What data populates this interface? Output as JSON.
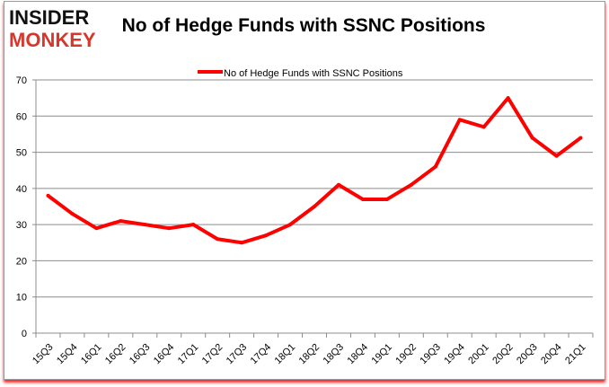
{
  "logo": {
    "line1": "INSIDER",
    "line2": "MONKEY"
  },
  "chart_data": {
    "type": "line",
    "title": "No of Hedge Funds with SSNC Positions",
    "xlabel": "",
    "ylabel": "",
    "categories": [
      "15Q3",
      "15Q4",
      "16Q1",
      "16Q2",
      "16Q3",
      "16Q4",
      "17Q1",
      "17Q2",
      "17Q3",
      "17Q4",
      "18Q1",
      "18Q2",
      "18Q3",
      "18Q4",
      "19Q1",
      "19Q2",
      "19Q3",
      "19Q4",
      "20Q1",
      "20Q2",
      "20Q3",
      "20Q4",
      "21Q1"
    ],
    "series": [
      {
        "name": "No of Hedge Funds with SSNC Positions",
        "color": "#ff0000",
        "values": [
          38,
          33,
          29,
          31,
          30,
          29,
          30,
          26,
          25,
          27,
          30,
          35,
          41,
          37,
          37,
          41,
          46,
          59,
          57,
          65,
          54,
          49,
          54
        ]
      }
    ],
    "ylim": [
      0,
      70
    ],
    "yticks": [
      0,
      10,
      20,
      30,
      40,
      50,
      60,
      70
    ],
    "grid": true,
    "legend": "top-center"
  }
}
